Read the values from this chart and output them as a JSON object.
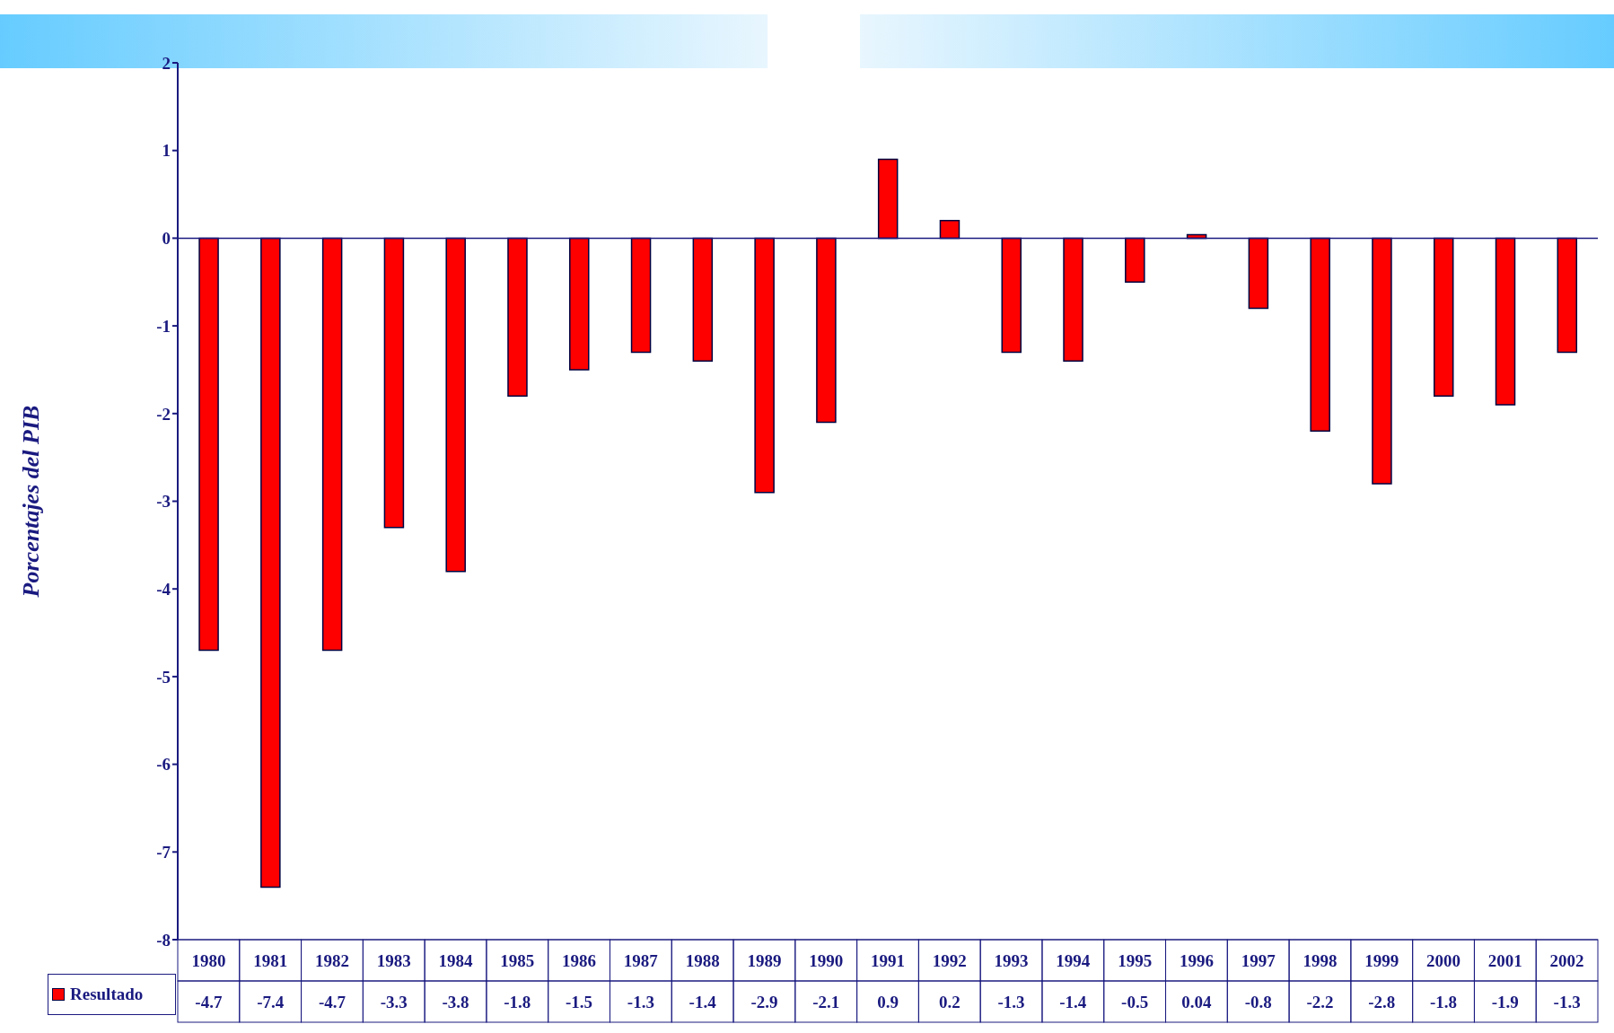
{
  "chart_data": {
    "type": "bar",
    "ylabel": "Porcentajes del PIB",
    "categories": [
      "1980",
      "1981",
      "1982",
      "1983",
      "1984",
      "1985",
      "1986",
      "1987",
      "1988",
      "1989",
      "1990",
      "1991",
      "1992",
      "1993",
      "1994",
      "1995",
      "1996",
      "1997",
      "1998",
      "1999",
      "2000",
      "2001",
      "2002"
    ],
    "series": [
      {
        "name": "Resultado",
        "color": "#ff0000",
        "values": [
          -4.7,
          -7.4,
          -4.7,
          -3.3,
          -3.8,
          -1.8,
          -1.5,
          -1.3,
          -1.4,
          -2.9,
          -2.1,
          0.9,
          0.2,
          -1.3,
          -1.4,
          -0.5,
          0.04,
          -0.8,
          -2.2,
          -2.8,
          -1.8,
          -1.9,
          -1.3
        ]
      }
    ],
    "ylim": [
      -8,
      2
    ],
    "yticks": [
      -8,
      -7,
      -6,
      -5,
      -4,
      -3,
      -2,
      -1,
      0,
      1,
      2
    ],
    "ref_lines": [
      {
        "axis": "y",
        "value": 0,
        "color": "#1a1a80"
      }
    ],
    "grid": false,
    "legend": "bottom",
    "data_labels": true
  }
}
